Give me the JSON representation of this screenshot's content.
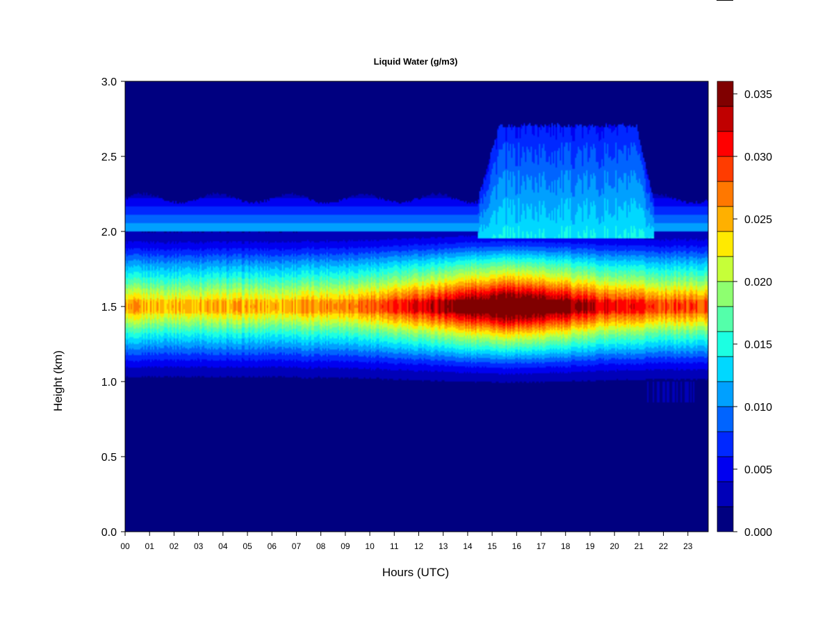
{
  "chart_data": {
    "type": "heatmap",
    "title": "Liquid Water (g/m3)",
    "xlabel": "Hours (UTC)",
    "ylabel": "Height (km)",
    "x_ticks": [
      "00",
      "01",
      "02",
      "03",
      "04",
      "05",
      "06",
      "07",
      "08",
      "09",
      "10",
      "11",
      "12",
      "13",
      "14",
      "15",
      "16",
      "17",
      "18",
      "19",
      "20",
      "21",
      "22",
      "23"
    ],
    "xlim": [
      0,
      23.83
    ],
    "y_ticks": [
      "0.0",
      "0.5",
      "1.0",
      "1.5",
      "2.0",
      "2.5",
      "3.0"
    ],
    "ylim": [
      0,
      3.0
    ],
    "colorbar": {
      "range": [
        0,
        0.036
      ],
      "ticks": [
        "0.000",
        "0.005",
        "0.010",
        "0.015",
        "0.020",
        "0.025",
        "0.030",
        "0.035"
      ],
      "levels": 18,
      "colors": [
        "#000080",
        "#0000b8",
        "#0000f0",
        "#0028ff",
        "#0064ff",
        "#00a0ff",
        "#00d8ff",
        "#1cffe2",
        "#54ffaa",
        "#8eff70",
        "#c6ff38",
        "#ffea00",
        "#ffb000",
        "#ff7800",
        "#ff3c00",
        "#ff0000",
        "#c00000",
        "#800000"
      ]
    },
    "field": {
      "low_layer": {
        "base_km": 0.92,
        "top_km": 2.22
      },
      "core_height_km": 1.5,
      "core_peak_hours": [
        14.5,
        17.5
      ],
      "max_value": 0.034,
      "upper_layer": {
        "hours": [
          14.4,
          21.6
        ],
        "top_km": 2.72
      }
    }
  }
}
